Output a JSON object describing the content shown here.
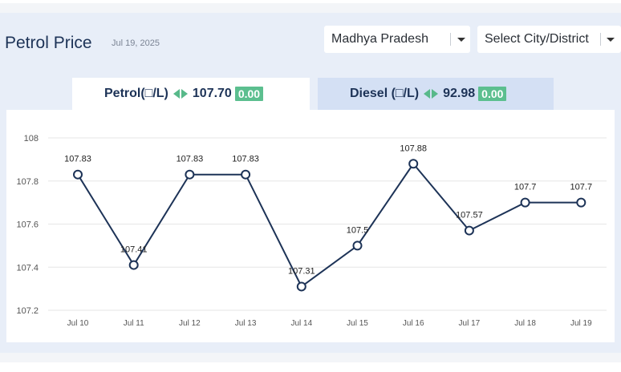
{
  "header": {
    "title": "Petrol Price",
    "date": "Jul 19, 2025"
  },
  "filters": {
    "state": "Madhya Pradesh",
    "city_placeholder": "Select City/District"
  },
  "tabs": [
    {
      "label": "Petrol(□/L)",
      "price": "107.70",
      "change": "0.00"
    },
    {
      "label": "Diesel (□/L)",
      "price": "92.98",
      "change": "0.00"
    }
  ],
  "colors": {
    "line": "#1d3357",
    "badge": "#5cbf8f",
    "arrow": "#58b98a",
    "grid": "#e6e6e6"
  },
  "chart_data": {
    "type": "line",
    "categories": [
      "Jul 10",
      "Jul 11",
      "Jul 12",
      "Jul 13",
      "Jul 14",
      "Jul 15",
      "Jul 16",
      "Jul 17",
      "Jul 18",
      "Jul 19"
    ],
    "series": [
      {
        "values": [
          107.83,
          107.41,
          107.83,
          107.83,
          107.31,
          107.5,
          107.88,
          107.57,
          107.7,
          107.7
        ]
      }
    ],
    "data_labels": [
      "107.83",
      "107.41",
      "107.83",
      "107.83",
      "107.31",
      "107.5",
      "107.88",
      "107.57",
      "107.7",
      "107.7"
    ],
    "y_ticks": [
      "107.2",
      "107.4",
      "107.6",
      "107.8",
      "108"
    ],
    "ylim": [
      107.2,
      108
    ],
    "grid": true,
    "legend": "none"
  }
}
